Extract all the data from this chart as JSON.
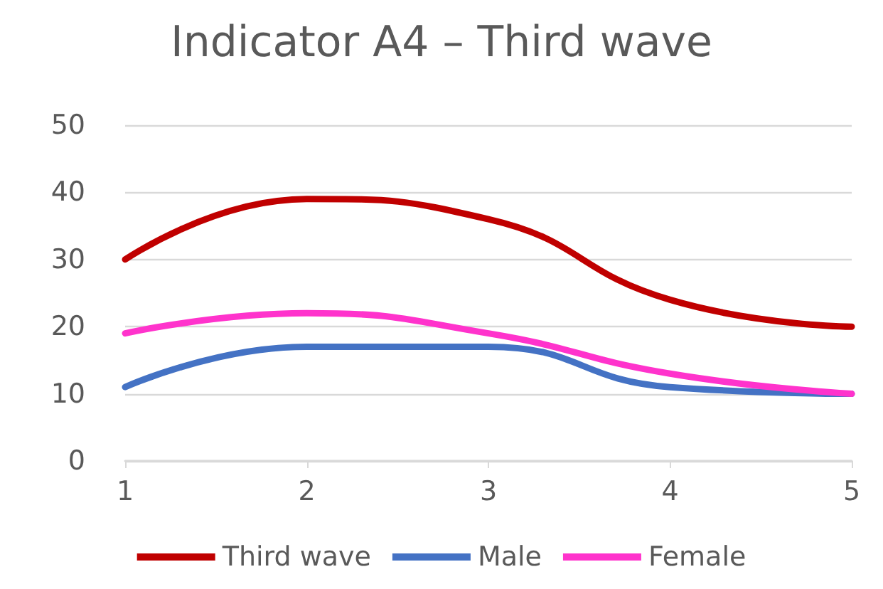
{
  "chart_data": {
    "type": "line",
    "title": "Indicator A4 – Third wave",
    "x": [
      1,
      2,
      3,
      4,
      5
    ],
    "series": [
      {
        "name": "Third wave",
        "color": "#c00000",
        "values": [
          30,
          39,
          36,
          24,
          20
        ]
      },
      {
        "name": "Male",
        "color": "#4472c4",
        "values": [
          11,
          17,
          17,
          11,
          10
        ]
      },
      {
        "name": "Female",
        "color": "#ff33cc",
        "values": [
          19,
          22,
          19,
          13,
          10
        ]
      }
    ],
    "xlim": [
      1,
      5
    ],
    "xticks": [
      1,
      2,
      3,
      4,
      5
    ],
    "ylim": [
      0,
      50
    ],
    "yticks": [
      0,
      10,
      20,
      30,
      40,
      50
    ],
    "grid": "y",
    "legend": "bottom",
    "marker": "none",
    "line_style": "solid"
  }
}
